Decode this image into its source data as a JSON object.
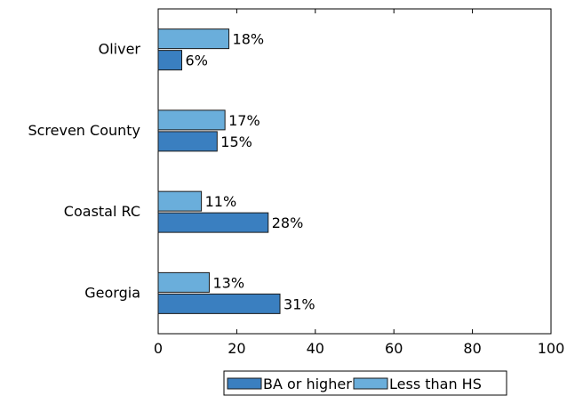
{
  "chart_data": {
    "type": "bar",
    "orientation": "horizontal",
    "categories": [
      "Oliver",
      "Screven County",
      "Coastal RC",
      "Georgia"
    ],
    "series": [
      {
        "name": "BA or higher",
        "values": [
          6,
          15,
          28,
          31
        ],
        "labels": [
          "6%",
          "15%",
          "28%",
          "31%"
        ],
        "color": "#3a7fc0"
      },
      {
        "name": "Less than HS",
        "values": [
          18,
          17,
          11,
          13
        ],
        "labels": [
          "18%",
          "17%",
          "11%",
          "13%"
        ],
        "color": "#6aaedb"
      }
    ],
    "xlim": [
      0,
      100
    ],
    "xticks": [
      0,
      20,
      40,
      60,
      80,
      100
    ],
    "xtick_labels": [
      "0",
      "20",
      "40",
      "60",
      "80",
      "100"
    ],
    "title": "",
    "xlabel": "",
    "ylabel": "",
    "grid": false,
    "legend_position": "bottom"
  }
}
